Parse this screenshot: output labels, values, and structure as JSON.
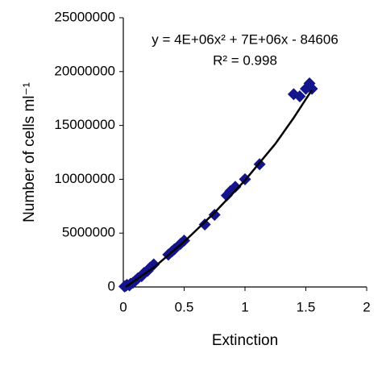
{
  "chart_data": {
    "type": "scatter",
    "x_label": "Extinction",
    "y_label": "Number of cells ml⁻¹",
    "annotations": [
      "y = 4E+06x² + 7E+06x - 84606",
      "R² = 0.998"
    ],
    "color": "#14148c",
    "x": [
      0.01,
      0.02,
      0.03,
      0.05,
      0.06,
      0.08,
      0.1,
      0.12,
      0.15,
      0.17,
      0.2,
      0.22,
      0.25,
      0.37,
      0.4,
      0.42,
      0.47,
      0.5,
      0.67,
      0.75,
      0.85,
      0.88,
      0.92,
      1.0,
      1.12,
      1.4,
      1.45,
      1.5,
      1.53,
      1.55
    ],
    "values": [
      50000,
      100000,
      200000,
      150000,
      300000,
      400000,
      600000,
      800000,
      1000000,
      1300000,
      1500000,
      1800000,
      2100000,
      3000000,
      3300000,
      3500000,
      4000000,
      4300000,
      5800000,
      6700000,
      8500000,
      8900000,
      9300000,
      10000000,
      11400000,
      17900000,
      17700000,
      18400000,
      18900000,
      18400000
    ],
    "trendline": {
      "color": "#000000",
      "x": [
        0.02,
        0.25,
        0.5,
        0.75,
        1.0,
        1.25,
        1.4,
        1.55
      ],
      "values": [
        0,
        1800000,
        4200000,
        6900000,
        9900000,
        13300000,
        15700000,
        18300000
      ]
    },
    "xlim": [
      0,
      2
    ],
    "xticks": [
      0,
      0.5,
      1,
      1.5,
      2
    ],
    "ylim": [
      0,
      25000000
    ],
    "yticks": [
      0,
      5000000,
      10000000,
      15000000,
      20000000,
      25000000
    ],
    "grid": false
  }
}
